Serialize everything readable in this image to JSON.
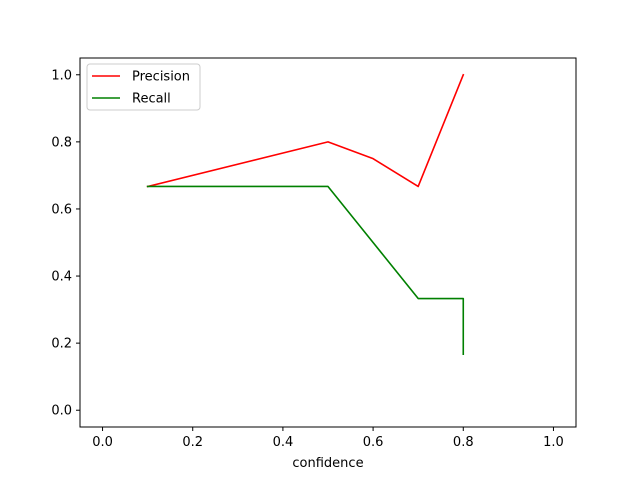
{
  "chart_data": {
    "type": "line",
    "xlabel": "confidence",
    "ylabel": "",
    "xlim": [
      -0.05,
      1.05
    ],
    "ylim": [
      -0.05,
      1.05
    ],
    "xticks": [
      0.0,
      0.2,
      0.4,
      0.6,
      0.8,
      1.0
    ],
    "xtick_labels": [
      "0.0",
      "0.2",
      "0.4",
      "0.6",
      "0.8",
      "1.0"
    ],
    "yticks": [
      0.0,
      0.2,
      0.4,
      0.6,
      0.8,
      1.0
    ],
    "ytick_labels": [
      "0.0",
      "0.2",
      "0.4",
      "0.6",
      "0.8",
      "1.0"
    ],
    "grid": false,
    "legend_position": "top-left",
    "series": [
      {
        "name": "Precision",
        "color": "#ff0000",
        "x": [
          0.1,
          0.5,
          0.6,
          0.7,
          0.8
        ],
        "y": [
          0.667,
          0.8,
          0.75,
          0.667,
          1.0
        ]
      },
      {
        "name": "Recall",
        "color": "#008000",
        "x": [
          0.1,
          0.5,
          0.6,
          0.7,
          0.8,
          0.8
        ],
        "y": [
          0.667,
          0.667,
          0.5,
          0.333,
          0.333,
          0.167
        ]
      }
    ]
  }
}
